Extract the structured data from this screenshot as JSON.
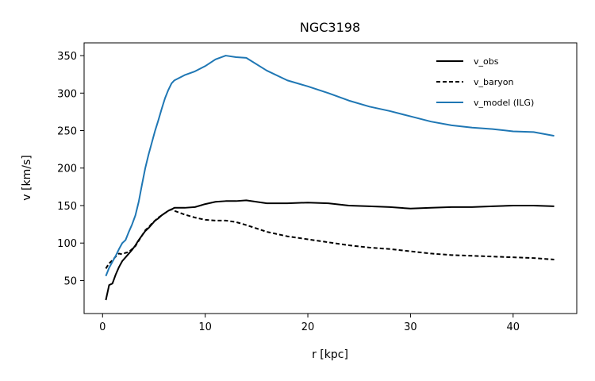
{
  "chart_data": {
    "type": "line",
    "title": "NGC3198",
    "xlabel": "r [kpc]",
    "ylabel": "v [km/s]",
    "xlim": [
      -1.8,
      46.2
    ],
    "ylim": [
      6,
      367
    ],
    "xticks": [
      0,
      10,
      20,
      30,
      40
    ],
    "yticks": [
      50,
      100,
      150,
      200,
      250,
      300,
      350
    ],
    "grid": false,
    "legend": {
      "placement": "top-right"
    },
    "series": [
      {
        "name": "v_obs",
        "color": "#000000",
        "dash": "solid",
        "x": [
          0.32,
          0.64,
          0.96,
          1.28,
          1.6,
          1.92,
          2.24,
          2.56,
          2.88,
          3.2,
          3.52,
          3.84,
          4.16,
          4.48,
          4.8,
          5.12,
          5.44,
          5.76,
          6.08,
          6.4,
          6.72,
          7.0,
          8.0,
          9.0,
          10.0,
          11.0,
          12.0,
          13.0,
          14.0,
          16.0,
          18.0,
          20.0,
          22.0,
          24.0,
          26.0,
          28.0,
          30.0,
          32.0,
          34.0,
          36.0,
          38.0,
          40.0,
          42.0,
          44.0
        ],
        "y": [
          24,
          44,
          46,
          58,
          68,
          76,
          81,
          86,
          91,
          97,
          104,
          110,
          116,
          120,
          125,
          130,
          133,
          137,
          140,
          143,
          145,
          147,
          147,
          148,
          152,
          155,
          156,
          156,
          157,
          153,
          153,
          154,
          153,
          150,
          149,
          148,
          146,
          147,
          148,
          148,
          149,
          150,
          150,
          149
        ]
      },
      {
        "name": "v_baryon",
        "color": "#000000",
        "dash": "dashed",
        "x": [
          0.32,
          0.64,
          0.96,
          1.28,
          1.6,
          1.92,
          2.24,
          2.56,
          2.88,
          3.2,
          3.52,
          3.84,
          4.16,
          4.48,
          4.8,
          5.12,
          5.44,
          5.76,
          6.08,
          6.4,
          6.72,
          7.0,
          8.0,
          9.0,
          10.0,
          11.0,
          12.0,
          13.0,
          14.0,
          16.0,
          18.0,
          20.0,
          22.0,
          24.0,
          26.0,
          28.0,
          30.0,
          32.0,
          34.0,
          36.0,
          38.0,
          40.0,
          42.0,
          44.0
        ],
        "y": [
          66,
          73,
          77,
          82,
          86,
          85,
          87,
          88,
          92,
          96,
          103,
          110,
          117,
          121,
          126,
          130,
          134,
          137,
          140,
          143,
          145,
          143,
          138,
          134,
          131,
          130,
          130,
          128,
          124,
          115,
          109,
          105,
          101,
          97,
          94,
          92,
          89,
          86,
          84,
          83,
          82,
          81,
          80,
          78
        ]
      },
      {
        "name": "v_model (ILG)",
        "color": "#1f77b4",
        "dash": "solid",
        "x": [
          0.32,
          0.64,
          0.96,
          1.28,
          1.6,
          1.92,
          2.24,
          2.56,
          2.88,
          3.2,
          3.52,
          3.84,
          4.16,
          4.48,
          4.8,
          5.12,
          5.44,
          5.76,
          6.08,
          6.4,
          6.72,
          7.0,
          8.0,
          9.0,
          10.0,
          11.0,
          12.0,
          13.0,
          14.0,
          16.0,
          18.0,
          20.0,
          22.0,
          24.0,
          26.0,
          28.0,
          30.0,
          32.0,
          34.0,
          36.0,
          38.0,
          40.0,
          42.0,
          44.0
        ],
        "y": [
          56,
          67,
          75,
          83,
          92,
          100,
          104,
          115,
          125,
          137,
          155,
          178,
          200,
          218,
          234,
          250,
          264,
          279,
          293,
          304,
          313,
          317,
          324,
          329,
          336,
          345,
          350,
          348,
          347,
          330,
          317,
          309,
          300,
          290,
          282,
          276,
          269,
          262,
          257,
          254,
          252,
          249,
          248,
          243
        ]
      }
    ]
  }
}
